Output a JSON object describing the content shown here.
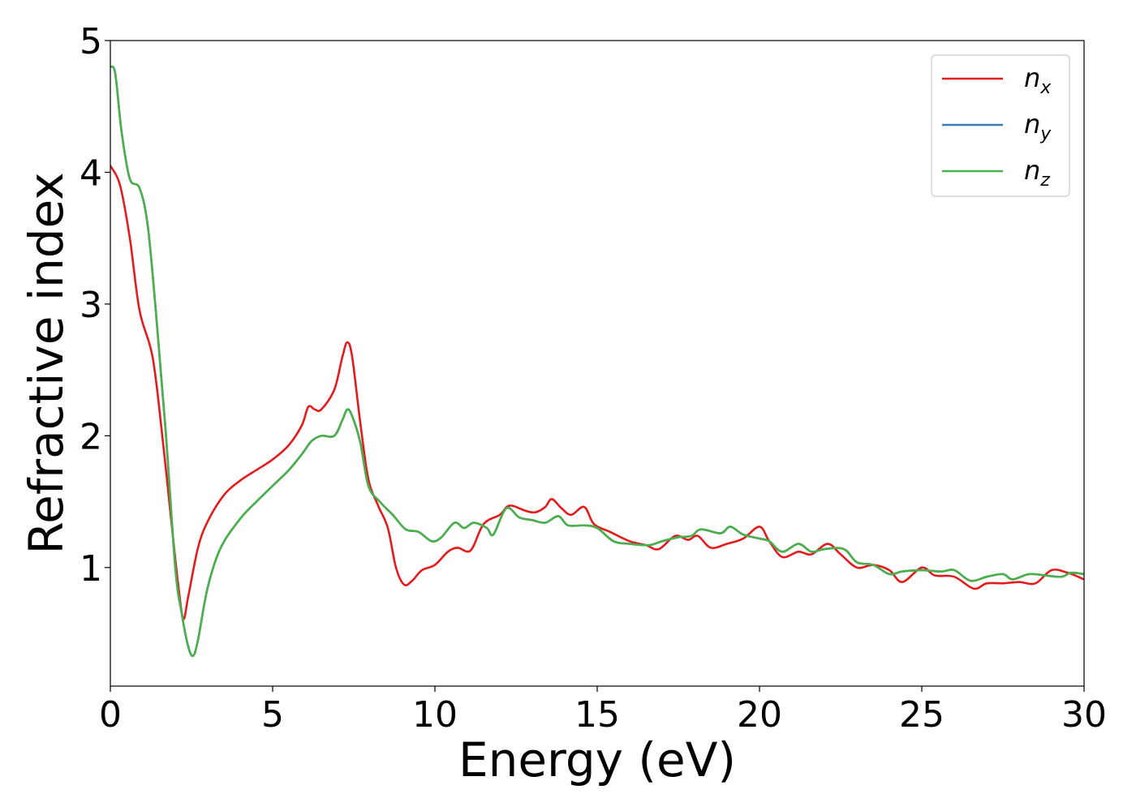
{
  "chart_data": {
    "type": "line",
    "title": "",
    "xlabel": "Energy (eV)",
    "ylabel": "Refractive index",
    "xlim": [
      0,
      30
    ],
    "ylim": [
      0.1,
      5.0
    ],
    "xticks": [
      0,
      5,
      10,
      15,
      20,
      25,
      30
    ],
    "xtick_labels": [
      "0",
      "5",
      "10",
      "15",
      "20",
      "25",
      "30"
    ],
    "yticks": [
      1,
      2,
      3,
      4,
      5
    ],
    "ytick_labels": [
      "1",
      "2",
      "3",
      "4",
      "5"
    ],
    "grid": false,
    "legend_position": "top-right",
    "series": [
      {
        "name": "n_x",
        "label_main": "n",
        "label_sub": "x",
        "color": "#e41a1c",
        "points": [
          [
            0.0,
            4.05
          ],
          [
            0.3,
            3.9
          ],
          [
            0.6,
            3.5
          ],
          [
            0.9,
            2.95
          ],
          [
            1.3,
            2.6
          ],
          [
            1.6,
            2.0
          ],
          [
            1.9,
            1.3
          ],
          [
            2.1,
            0.85
          ],
          [
            2.25,
            0.61
          ],
          [
            2.4,
            0.78
          ],
          [
            2.7,
            1.15
          ],
          [
            3.0,
            1.35
          ],
          [
            3.5,
            1.55
          ],
          [
            4.0,
            1.66
          ],
          [
            4.5,
            1.74
          ],
          [
            5.0,
            1.82
          ],
          [
            5.5,
            1.93
          ],
          [
            5.9,
            2.08
          ],
          [
            6.1,
            2.22
          ],
          [
            6.3,
            2.2
          ],
          [
            6.5,
            2.2
          ],
          [
            6.9,
            2.35
          ],
          [
            7.15,
            2.6
          ],
          [
            7.3,
            2.71
          ],
          [
            7.45,
            2.6
          ],
          [
            7.7,
            2.1
          ],
          [
            7.95,
            1.67
          ],
          [
            8.25,
            1.47
          ],
          [
            8.55,
            1.3
          ],
          [
            8.8,
            1.0
          ],
          [
            9.05,
            0.87
          ],
          [
            9.3,
            0.9
          ],
          [
            9.6,
            0.98
          ],
          [
            10.0,
            1.02
          ],
          [
            10.4,
            1.12
          ],
          [
            10.7,
            1.15
          ],
          [
            11.1,
            1.13
          ],
          [
            11.5,
            1.33
          ],
          [
            12.0,
            1.4
          ],
          [
            12.3,
            1.47
          ],
          [
            12.8,
            1.43
          ],
          [
            13.1,
            1.42
          ],
          [
            13.4,
            1.46
          ],
          [
            13.6,
            1.52
          ],
          [
            13.9,
            1.45
          ],
          [
            14.2,
            1.4
          ],
          [
            14.6,
            1.46
          ],
          [
            14.9,
            1.33
          ],
          [
            15.4,
            1.27
          ],
          [
            16.0,
            1.2
          ],
          [
            16.5,
            1.17
          ],
          [
            16.9,
            1.14
          ],
          [
            17.4,
            1.24
          ],
          [
            17.8,
            1.21
          ],
          [
            18.1,
            1.24
          ],
          [
            18.5,
            1.15
          ],
          [
            19.0,
            1.18
          ],
          [
            19.5,
            1.22
          ],
          [
            20.0,
            1.31
          ],
          [
            20.3,
            1.2
          ],
          [
            20.7,
            1.08
          ],
          [
            21.2,
            1.12
          ],
          [
            21.6,
            1.1
          ],
          [
            22.1,
            1.18
          ],
          [
            22.5,
            1.1
          ],
          [
            23.0,
            1.0
          ],
          [
            23.5,
            1.02
          ],
          [
            24.0,
            0.98
          ],
          [
            24.4,
            0.89
          ],
          [
            25.0,
            1.0
          ],
          [
            25.4,
            0.94
          ],
          [
            26.0,
            0.93
          ],
          [
            26.6,
            0.84
          ],
          [
            27.0,
            0.88
          ],
          [
            27.5,
            0.88
          ],
          [
            28.0,
            0.89
          ],
          [
            28.5,
            0.88
          ],
          [
            29.0,
            0.98
          ],
          [
            29.5,
            0.96
          ],
          [
            30.0,
            0.91
          ]
        ]
      },
      {
        "name": "n_y",
        "label_main": "n",
        "label_sub": "y",
        "color": "#377eb8",
        "points": [
          [
            0.0,
            4.8
          ],
          [
            0.15,
            4.75
          ],
          [
            0.35,
            4.3
          ],
          [
            0.6,
            3.95
          ],
          [
            0.9,
            3.88
          ],
          [
            1.15,
            3.6
          ],
          [
            1.4,
            2.95
          ],
          [
            1.7,
            2.05
          ],
          [
            2.0,
            1.0
          ],
          [
            2.2,
            0.65
          ],
          [
            2.4,
            0.4
          ],
          [
            2.55,
            0.33
          ],
          [
            2.7,
            0.45
          ],
          [
            3.0,
            0.85
          ],
          [
            3.4,
            1.15
          ],
          [
            4.0,
            1.37
          ],
          [
            4.5,
            1.5
          ],
          [
            5.0,
            1.62
          ],
          [
            5.5,
            1.74
          ],
          [
            5.9,
            1.86
          ],
          [
            6.2,
            1.96
          ],
          [
            6.5,
            2.0
          ],
          [
            6.9,
            2.0
          ],
          [
            7.15,
            2.12
          ],
          [
            7.3,
            2.2
          ],
          [
            7.45,
            2.15
          ],
          [
            7.7,
            1.95
          ],
          [
            7.95,
            1.62
          ],
          [
            8.3,
            1.5
          ],
          [
            8.7,
            1.4
          ],
          [
            9.1,
            1.29
          ],
          [
            9.5,
            1.27
          ],
          [
            9.9,
            1.2
          ],
          [
            10.2,
            1.23
          ],
          [
            10.6,
            1.34
          ],
          [
            10.9,
            1.3
          ],
          [
            11.2,
            1.34
          ],
          [
            11.6,
            1.3
          ],
          [
            11.8,
            1.25
          ],
          [
            12.2,
            1.45
          ],
          [
            12.6,
            1.38
          ],
          [
            13.0,
            1.36
          ],
          [
            13.4,
            1.34
          ],
          [
            13.8,
            1.39
          ],
          [
            14.1,
            1.32
          ],
          [
            14.6,
            1.32
          ],
          [
            15.0,
            1.3
          ],
          [
            15.5,
            1.2
          ],
          [
            16.0,
            1.18
          ],
          [
            16.6,
            1.17
          ],
          [
            17.0,
            1.2
          ],
          [
            17.5,
            1.23
          ],
          [
            17.9,
            1.24
          ],
          [
            18.2,
            1.29
          ],
          [
            18.8,
            1.26
          ],
          [
            19.1,
            1.31
          ],
          [
            19.5,
            1.25
          ],
          [
            20.0,
            1.22
          ],
          [
            20.3,
            1.2
          ],
          [
            20.7,
            1.12
          ],
          [
            21.2,
            1.18
          ],
          [
            21.6,
            1.12
          ],
          [
            22.0,
            1.14
          ],
          [
            22.6,
            1.14
          ],
          [
            23.0,
            1.04
          ],
          [
            23.5,
            1.02
          ],
          [
            24.0,
            0.95
          ],
          [
            24.4,
            0.97
          ],
          [
            25.0,
            0.98
          ],
          [
            25.6,
            0.97
          ],
          [
            26.0,
            0.98
          ],
          [
            26.5,
            0.9
          ],
          [
            27.0,
            0.93
          ],
          [
            27.5,
            0.95
          ],
          [
            27.8,
            0.91
          ],
          [
            28.3,
            0.95
          ],
          [
            28.8,
            0.94
          ],
          [
            29.3,
            0.93
          ],
          [
            29.6,
            0.96
          ],
          [
            30.0,
            0.95
          ]
        ]
      },
      {
        "name": "n_z",
        "label_main": "n",
        "label_sub": "z",
        "color": "#4daf4a",
        "points": [
          [
            0.0,
            4.8
          ],
          [
            0.15,
            4.75
          ],
          [
            0.35,
            4.3
          ],
          [
            0.6,
            3.95
          ],
          [
            0.9,
            3.88
          ],
          [
            1.15,
            3.6
          ],
          [
            1.4,
            2.95
          ],
          [
            1.7,
            2.05
          ],
          [
            2.0,
            1.0
          ],
          [
            2.2,
            0.65
          ],
          [
            2.4,
            0.4
          ],
          [
            2.55,
            0.33
          ],
          [
            2.7,
            0.45
          ],
          [
            3.0,
            0.85
          ],
          [
            3.4,
            1.15
          ],
          [
            4.0,
            1.37
          ],
          [
            4.5,
            1.5
          ],
          [
            5.0,
            1.62
          ],
          [
            5.5,
            1.74
          ],
          [
            5.9,
            1.86
          ],
          [
            6.2,
            1.96
          ],
          [
            6.5,
            2.0
          ],
          [
            6.9,
            2.0
          ],
          [
            7.15,
            2.12
          ],
          [
            7.3,
            2.2
          ],
          [
            7.45,
            2.15
          ],
          [
            7.7,
            1.95
          ],
          [
            7.95,
            1.62
          ],
          [
            8.3,
            1.5
          ],
          [
            8.7,
            1.4
          ],
          [
            9.1,
            1.29
          ],
          [
            9.5,
            1.27
          ],
          [
            9.9,
            1.2
          ],
          [
            10.2,
            1.23
          ],
          [
            10.6,
            1.34
          ],
          [
            10.9,
            1.3
          ],
          [
            11.2,
            1.34
          ],
          [
            11.6,
            1.3
          ],
          [
            11.8,
            1.25
          ],
          [
            12.2,
            1.45
          ],
          [
            12.6,
            1.38
          ],
          [
            13.0,
            1.36
          ],
          [
            13.4,
            1.34
          ],
          [
            13.8,
            1.39
          ],
          [
            14.1,
            1.32
          ],
          [
            14.6,
            1.32
          ],
          [
            15.0,
            1.3
          ],
          [
            15.5,
            1.2
          ],
          [
            16.0,
            1.18
          ],
          [
            16.6,
            1.17
          ],
          [
            17.0,
            1.2
          ],
          [
            17.5,
            1.23
          ],
          [
            17.9,
            1.24
          ],
          [
            18.2,
            1.29
          ],
          [
            18.8,
            1.26
          ],
          [
            19.1,
            1.31
          ],
          [
            19.5,
            1.25
          ],
          [
            20.0,
            1.22
          ],
          [
            20.3,
            1.2
          ],
          [
            20.7,
            1.12
          ],
          [
            21.2,
            1.18
          ],
          [
            21.6,
            1.12
          ],
          [
            22.0,
            1.14
          ],
          [
            22.6,
            1.14
          ],
          [
            23.0,
            1.04
          ],
          [
            23.5,
            1.02
          ],
          [
            24.0,
            0.95
          ],
          [
            24.4,
            0.97
          ],
          [
            25.0,
            0.98
          ],
          [
            25.6,
            0.97
          ],
          [
            26.0,
            0.98
          ],
          [
            26.5,
            0.9
          ],
          [
            27.0,
            0.93
          ],
          [
            27.5,
            0.95
          ],
          [
            27.8,
            0.91
          ],
          [
            28.3,
            0.95
          ],
          [
            28.8,
            0.94
          ],
          [
            29.3,
            0.93
          ],
          [
            29.6,
            0.96
          ],
          [
            30.0,
            0.95
          ]
        ]
      }
    ]
  }
}
